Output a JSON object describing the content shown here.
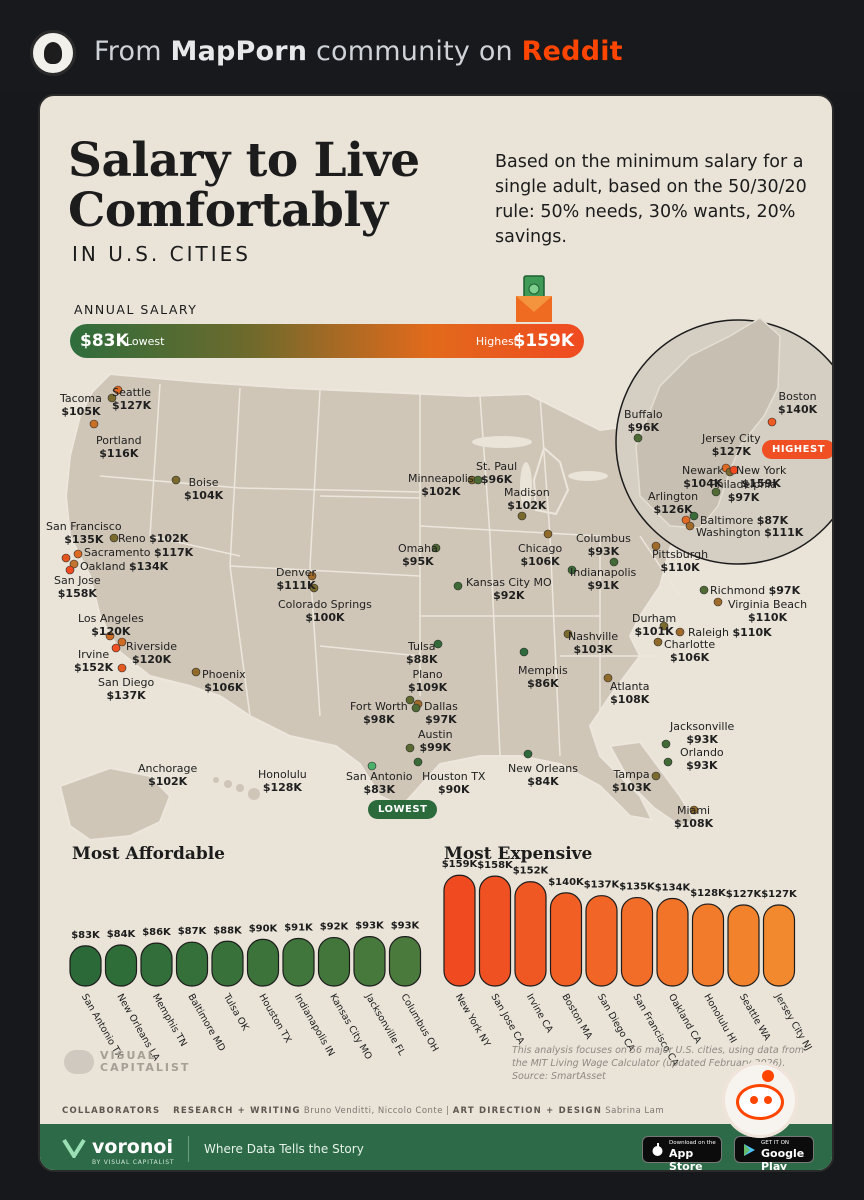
{
  "header": {
    "prefix": "From",
    "community": "MapPorn",
    "middle": "community on",
    "site": "Reddit"
  },
  "title_line1": "Salary to Live",
  "title_line2": "Comfortably",
  "subtitle": "IN U.S. CITIES",
  "description": "Based on the minimum salary for a single adult, based on the 50/30/20 rule: 50% needs, 30% wants, 20% savings.",
  "legend": {
    "label": "ANNUAL SALARY",
    "low_value": "$83K",
    "low_text": "Lowest",
    "high_text": "Highest",
    "high_value": "$159K"
  },
  "tags": {
    "highest": "HIGHEST",
    "lowest": "LOWEST"
  },
  "colors": {
    "low": "#2e6d3c",
    "mid": "#8a6a2a",
    "high": "#f04a20",
    "land": "#cfc6b8",
    "border": "#ece6dc"
  },
  "cities": [
    {
      "name": "Seattle",
      "salary": "$127K"
    },
    {
      "name": "Tacoma",
      "salary": "$105K"
    },
    {
      "name": "Portland",
      "salary": "$116K"
    },
    {
      "name": "Boise",
      "salary": "$104K"
    },
    {
      "name": "San Francisco",
      "salary": "$135K"
    },
    {
      "name": "Reno",
      "salary": "$102K"
    },
    {
      "name": "Sacramento",
      "salary": "$117K"
    },
    {
      "name": "Oakland",
      "salary": "$134K"
    },
    {
      "name": "San Jose",
      "salary": "$158K"
    },
    {
      "name": "Los Angeles",
      "salary": "$120K"
    },
    {
      "name": "Riverside",
      "salary": "$120K"
    },
    {
      "name": "Irvine",
      "salary": "$152K"
    },
    {
      "name": "San Diego",
      "salary": "$137K"
    },
    {
      "name": "Phoenix",
      "salary": "$106K"
    },
    {
      "name": "Denver",
      "salary": "$111K"
    },
    {
      "name": "Colorado Springs",
      "salary": "$100K"
    },
    {
      "name": "Anchorage",
      "salary": "$102K"
    },
    {
      "name": "Honolulu",
      "salary": "$128K"
    },
    {
      "name": "Minneapolis",
      "salary": "$102K"
    },
    {
      "name": "St. Paul",
      "salary": "$96K"
    },
    {
      "name": "Madison",
      "salary": "$102K"
    },
    {
      "name": "Omaha",
      "salary": "$95K"
    },
    {
      "name": "Kansas City MO",
      "salary": "$92K"
    },
    {
      "name": "Chicago",
      "salary": "$106K"
    },
    {
      "name": "Columbus",
      "salary": "$93K"
    },
    {
      "name": "Indianapolis",
      "salary": "$91K"
    },
    {
      "name": "Pittsburgh",
      "salary": "$110K"
    },
    {
      "name": "Tulsa",
      "salary": "$88K"
    },
    {
      "name": "Nashville",
      "salary": "$103K"
    },
    {
      "name": "Memphis",
      "salary": "$86K"
    },
    {
      "name": "Plano",
      "salary": "$109K"
    },
    {
      "name": "Fort Worth",
      "salary": "$98K"
    },
    {
      "name": "Dallas",
      "salary": "$97K"
    },
    {
      "name": "Austin",
      "salary": "$99K"
    },
    {
      "name": "San Antonio",
      "salary": "$83K"
    },
    {
      "name": "Houston TX",
      "salary": "$90K"
    },
    {
      "name": "New Orleans",
      "salary": "$84K"
    },
    {
      "name": "Atlanta",
      "salary": "$108K"
    },
    {
      "name": "Charlotte",
      "salary": "$106K"
    },
    {
      "name": "Durham",
      "salary": "$101K"
    },
    {
      "name": "Raleigh",
      "salary": "$110K"
    },
    {
      "name": "Richmond",
      "salary": "$97K"
    },
    {
      "name": "Virginia Beach",
      "salary": "$110K"
    },
    {
      "name": "Jacksonville",
      "salary": "$93K"
    },
    {
      "name": "Orlando",
      "salary": "$93K"
    },
    {
      "name": "Tampa",
      "salary": "$103K"
    },
    {
      "name": "Miami",
      "salary": "$108K"
    },
    {
      "name": "Buffalo",
      "salary": "$96K"
    },
    {
      "name": "Boston",
      "salary": "$140K"
    },
    {
      "name": "Jersey City",
      "salary": "$127K"
    },
    {
      "name": "Newark",
      "salary": "$104K"
    },
    {
      "name": "New York",
      "salary": "$159K"
    },
    {
      "name": "Philadelphia",
      "salary": "$97K"
    },
    {
      "name": "Arlington",
      "salary": "$126K"
    },
    {
      "name": "Baltimore",
      "salary": "$87K"
    },
    {
      "name": "Washington",
      "salary": "$111K"
    }
  ],
  "chart_data": [
    {
      "type": "bar",
      "title": "Most Affordable",
      "categories": [
        "San Antonio TX",
        "New Orleans LA",
        "Memphis TN",
        "Baltimore MD",
        "Tulsa OK",
        "Houston TX",
        "Indianapolis IN",
        "Kansas City MO",
        "Jacksonville FL",
        "Columbus OH"
      ],
      "values": [
        83,
        84,
        86,
        87,
        88,
        90,
        91,
        92,
        93,
        93
      ],
      "labels": [
        "$83K",
        "$84K",
        "$86K",
        "$87K",
        "$88K",
        "$90K",
        "$91K",
        "$92K",
        "$93K",
        "$93K"
      ],
      "unit": "$K"
    },
    {
      "type": "bar",
      "title": "Most Expensive",
      "categories": [
        "New York NY",
        "San Jose CA",
        "Irvine CA",
        "Boston MA",
        "San Diego CA",
        "San Francisco CA",
        "Oakland CA",
        "Honolulu HI",
        "Seattle WA",
        "Jersey City NJ"
      ],
      "values": [
        159,
        158,
        152,
        140,
        137,
        135,
        134,
        128,
        127,
        127
      ],
      "labels": [
        "$159K",
        "$158K",
        "$152K",
        "$140K",
        "$137K",
        "$135K",
        "$134K",
        "$128K",
        "$127K",
        "$127K"
      ],
      "unit": "$K"
    }
  ],
  "note": "This analysis focuses on 56 major U.S. cities, using data from the MIT Living Wage Calculator (updated February 2026). Source: SmartAsset",
  "logo_text": "VISUAL CAPITALIST",
  "collaborators": {
    "label": "COLLABORATORS",
    "research_label": "RESEARCH + WRITING",
    "research_names": "Bruno Venditti, Niccolo Conte",
    "art_label": "ART DIRECTION + DESIGN",
    "art_names": "Sabrina Lam"
  },
  "footer": {
    "brand": "voronoi",
    "by": "BY VISUAL CAPITALIST",
    "tagline": "Where Data Tells the Story",
    "appstore_small": "Download on the",
    "appstore_big": "App Store",
    "googleplay_small": "GET IT ON",
    "googleplay_big": "Google Play"
  }
}
